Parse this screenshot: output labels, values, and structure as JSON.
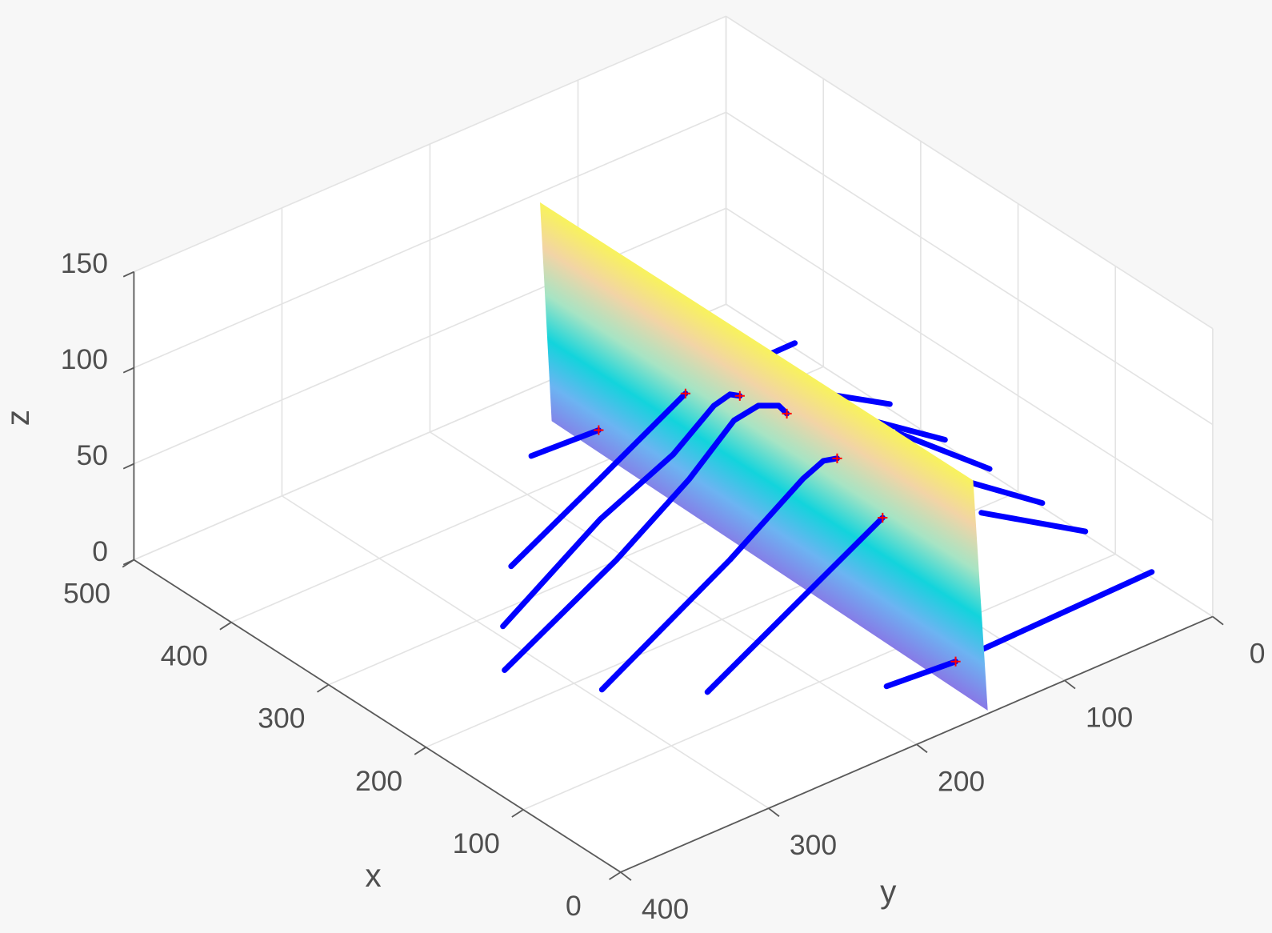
{
  "chart_data": {
    "type": "plot3",
    "xlabel": "x",
    "ylabel": "y",
    "zlabel": "z",
    "xlim": [
      0,
      500
    ],
    "ylim": [
      0,
      400
    ],
    "zlim": [
      0,
      150
    ],
    "xticks": [
      0,
      100,
      200,
      300,
      400,
      500
    ],
    "yticks": [
      0,
      100,
      200,
      300,
      400
    ],
    "zticks": [
      0,
      50,
      100,
      150
    ],
    "grid": true,
    "surface": {
      "x": [
        3,
        451,
        463,
        18
      ],
      "y": [
        150,
        150,
        150,
        150
      ],
      "z": [
        0,
        5,
        115,
        115
      ],
      "colormap": [
        "#8878e6",
        "#6cb4f2",
        "#12d4dc",
        "#a6e4c4",
        "#f2d4a6",
        "#f8f35c"
      ]
    },
    "lines": [
      {
        "color": "#0000ff",
        "x": [
          405.8,
          402.7,
          405
        ],
        "y": [
          193.5,
          150,
          16
        ],
        "z": [
          16,
          16,
          16
        ]
      },
      {
        "color": "#0000ff",
        "x": [
          338,
          326.3,
          313.5
        ],
        "y": [
          251.7,
          199.2,
          150
        ],
        "z": [
          0,
          32,
          64.1
        ]
      },
      {
        "color": "#0000ff",
        "x": [
          283.9,
          276.4,
          264.2,
          264.6,
          261.4,
          257.7
        ],
        "y": [
          292.8,
          232,
          190.7,
          163,
          154.2,
          150
        ],
        "z": [
          0,
          38,
          62,
          78,
          82,
          81
        ]
      },
      {
        "color": "#0000ff",
        "x": [
          241.3,
          236.3,
          234.1,
          231.2,
          224.2,
          213.9,
          209.4
        ],
        "y": [
          319.7,
          247.4,
          199.5,
          171.3,
          159.5,
          152.5,
          150
        ],
        "z": [
          0,
          35,
          62,
          84,
          90,
          91,
          87.5
        ]
      },
      {
        "color": "#0000ff",
        "x": [
          182.4,
          171.1,
          168.9,
          164.7,
          157.7
        ],
        "y": [
          292.7,
          213.6,
          165.7,
          154.7,
          150
        ],
        "z": [
          0,
          45,
          72,
          79,
          81
        ]
      },
      {
        "color": "#0000ff",
        "x": [
          136.5,
          111
        ],
        "y": [
          251.6,
          150
        ],
        "z": [
          0,
          65.3
        ]
      },
      {
        "color": "#0000ff",
        "x": [
          40.8,
          36,
          40.7
        ],
        "y": [
          193.5,
          150,
          14.4
        ],
        "z": [
          14.8,
          14.8,
          14.8
        ]
      },
      {
        "color": "#0000ff",
        "x": [
          300.9,
          263.3
        ],
        "y": [
          65.2,
          45
        ],
        "z": [
          40,
          40
        ]
      },
      {
        "color": "#0000ff",
        "x": [
          261.8,
          206.3
        ],
        "y": [
          65.1,
          45.2
        ],
        "z": [
          40,
          40
        ]
      },
      {
        "color": "#0000ff",
        "x": [
          233.4,
          160
        ],
        "y": [
          60.2,
          45.5
        ],
        "z": [
          40,
          40
        ]
      },
      {
        "color": "#0000ff",
        "x": [
          164,
          105.6
        ],
        "y": [
          64.8,
          45.7
        ],
        "z": [
          40,
          40
        ]
      },
      {
        "color": "#0000ff",
        "x": [
          121.4,
          60.6
        ],
        "y": [
          76.4,
          46.2
        ],
        "z": [
          40,
          40
        ]
      }
    ],
    "markers": {
      "color": "#ff0000",
      "x": [
        402.7,
        313.5,
        257.7,
        209.4,
        157.7,
        111,
        36
      ],
      "y": [
        150,
        150,
        150,
        150,
        150,
        150,
        150
      ],
      "z": [
        16,
        64.1,
        81,
        87.5,
        81,
        65.3,
        14.8
      ]
    }
  }
}
